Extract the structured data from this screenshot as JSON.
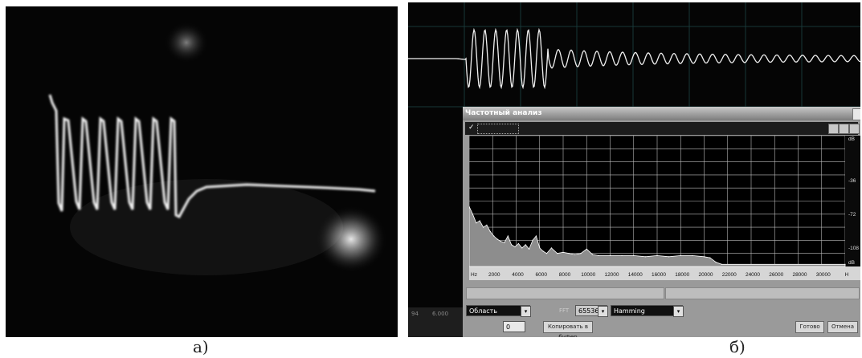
{
  "captions": {
    "left": "а)",
    "right": "б)"
  },
  "dialog": {
    "title": "Частотный анализ",
    "area_select": "Область",
    "fft_size": "65536",
    "window": "Hamming",
    "samples_value": "0",
    "buffer_button": "Копировать в буфер",
    "ok_button": "Готово",
    "close_button": "Отмена"
  },
  "left_numbers": [
    "94",
    "6.000"
  ],
  "colors": {
    "background": "#000000",
    "trace": "#ffffff",
    "dialog": "#9a9a9a"
  },
  "chart_data": {
    "type": "area",
    "xlabel": "",
    "ylabel": "",
    "x_unit": "Hz",
    "x_ticks": [
      "Hz",
      "2000",
      "4000",
      "6000",
      "8000",
      "10000",
      "12000",
      "14000",
      "16000",
      "18000",
      "20000",
      "22000",
      "24000",
      "26000",
      "28000",
      "30000",
      "H"
    ],
    "y_ticks": [
      "dB",
      "-36",
      "-72",
      "-108",
      "dB"
    ],
    "xlim": [
      0,
      32000
    ],
    "ylim": [
      -120,
      0
    ],
    "grid": true,
    "series": [
      {
        "x": [
          0,
          300,
          600,
          900,
          1200,
          1500,
          1800,
          2100,
          2400,
          2700,
          3000,
          3300,
          3600,
          3900,
          4200,
          4500,
          4800,
          5100,
          5400,
          5700,
          6000,
          6300,
          6600,
          7000,
          7500,
          8000,
          8500,
          9000,
          9500,
          10000,
          10500,
          11000,
          12000,
          13000,
          14000,
          15000,
          16000,
          17000,
          18000,
          19000,
          20000,
          20500,
          21000,
          21500,
          32000
        ],
        "y": [
          -65,
          -72,
          -80,
          -78,
          -84,
          -82,
          -88,
          -92,
          -95,
          -97,
          -98,
          -92,
          -100,
          -102,
          -99,
          -103,
          -100,
          -104,
          -96,
          -92,
          -103,
          -106,
          -108,
          -103,
          -108,
          -107,
          -108,
          -109,
          -108,
          -104,
          -109,
          -110,
          -110,
          -110,
          -110,
          -111,
          -110,
          -111,
          -110,
          -110,
          -111,
          -112,
          -116,
          -118,
          -118
        ]
      }
    ]
  }
}
